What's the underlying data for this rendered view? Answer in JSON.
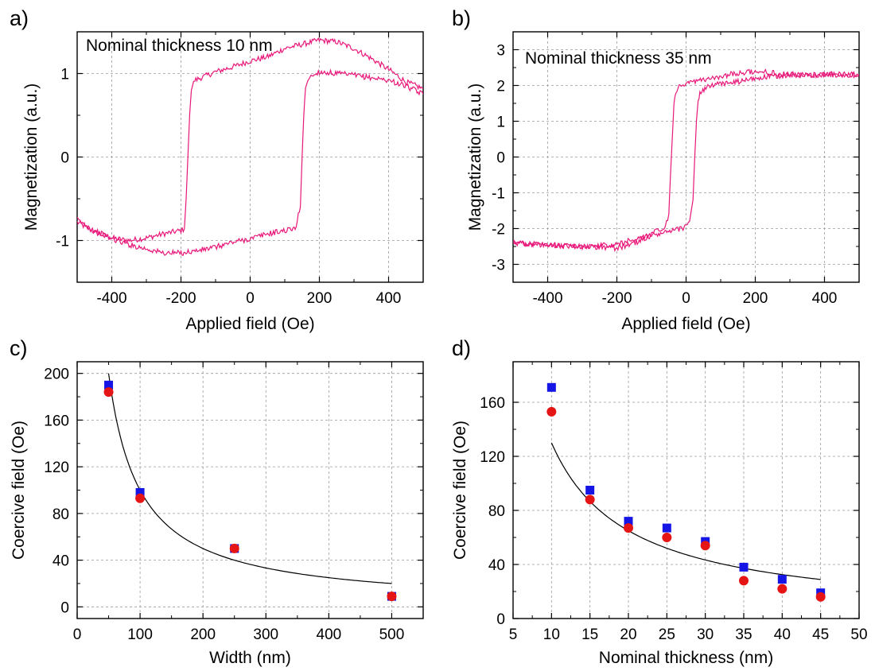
{
  "chart_data": [
    {
      "panel": "a)",
      "type": "line",
      "annotation": "Nominal thickness 10 nm",
      "xlabel": "Applied field (Oe)",
      "ylabel": "Magnetization (a.u.)",
      "xlim": [
        -500,
        500
      ],
      "ylim": [
        -1.5,
        1.5
      ],
      "xticks": [
        -400,
        -200,
        0,
        200,
        400
      ],
      "yticks": [
        -1,
        0,
        1
      ],
      "grid": true,
      "color": "#e8187a",
      "series": [
        {
          "x": [
            -500,
            -450,
            -400,
            -350,
            -300,
            -250,
            -200,
            -190,
            -185,
            -180,
            -175,
            -170,
            -160,
            -100,
            -50,
            0,
            50,
            100,
            150,
            200,
            250,
            300,
            350,
            400,
            450,
            500
          ],
          "y": [
            -0.78,
            -0.9,
            -0.97,
            -1.0,
            -0.97,
            -0.92,
            -0.88,
            -0.86,
            -0.5,
            0.0,
            0.5,
            0.82,
            0.92,
            1.02,
            1.08,
            1.15,
            1.2,
            1.3,
            1.35,
            1.4,
            1.38,
            1.3,
            1.18,
            1.05,
            0.9,
            0.82
          ]
        },
        {
          "x": [
            -500,
            -450,
            -400,
            -350,
            -300,
            -250,
            -200,
            -150,
            -100,
            -50,
            0,
            50,
            100,
            130,
            145,
            150,
            155,
            160,
            170,
            200,
            250,
            300,
            350,
            400,
            450,
            500
          ],
          "y": [
            -0.75,
            -0.88,
            -0.98,
            -1.05,
            -1.1,
            -1.15,
            -1.15,
            -1.12,
            -1.08,
            -1.02,
            -0.98,
            -0.92,
            -0.88,
            -0.86,
            -0.6,
            0.0,
            0.5,
            0.85,
            0.95,
            1.02,
            1.0,
            0.98,
            0.95,
            0.92,
            0.85,
            0.75
          ]
        }
      ]
    },
    {
      "panel": "b)",
      "type": "line",
      "annotation": "Nominal thickness 35 nm",
      "xlabel": "Applied field (Oe)",
      "ylabel": "Magnetization (a.u.)",
      "xlim": [
        -500,
        500
      ],
      "ylim": [
        -3.5,
        3.5
      ],
      "xticks": [
        -400,
        -200,
        0,
        200,
        400
      ],
      "yticks": [
        -3,
        -2,
        -1,
        0,
        1,
        2,
        3
      ],
      "grid": true,
      "color": "#e8187a",
      "series": [
        {
          "x": [
            -500,
            -400,
            -300,
            -200,
            -150,
            -100,
            -60,
            -50,
            -45,
            -40,
            -35,
            -30,
            -20,
            0,
            50,
            100,
            150,
            200,
            250,
            300,
            400,
            500
          ],
          "y": [
            -2.4,
            -2.45,
            -2.5,
            -2.45,
            -2.3,
            -2.15,
            -1.95,
            -1.6,
            -0.5,
            0.5,
            1.5,
            1.85,
            1.95,
            2.05,
            2.15,
            2.25,
            2.35,
            2.4,
            2.35,
            2.3,
            2.3,
            2.3
          ]
        },
        {
          "x": [
            -500,
            -400,
            -300,
            -200,
            -150,
            -100,
            -50,
            0,
            10,
            20,
            25,
            30,
            35,
            40,
            60,
            100,
            150,
            200,
            250,
            300,
            400,
            500
          ],
          "y": [
            -2.4,
            -2.45,
            -2.5,
            -2.55,
            -2.4,
            -2.2,
            -2.1,
            -1.95,
            -1.8,
            -1.2,
            0.0,
            1.0,
            1.6,
            1.8,
            1.95,
            2.05,
            2.1,
            2.2,
            2.25,
            2.3,
            2.3,
            2.3
          ]
        }
      ]
    },
    {
      "panel": "c)",
      "type": "scatter",
      "xlabel": "Width (nm)",
      "ylabel": "Coercive field (Oe)",
      "xlim": [
        0,
        550
      ],
      "ylim": [
        -10,
        210
      ],
      "xticks": [
        0,
        100,
        200,
        300,
        400,
        500
      ],
      "yticks": [
        0,
        40,
        80,
        120,
        160,
        200
      ],
      "grid": true,
      "series": [
        {
          "marker": "square",
          "color": "#1515e6",
          "x": [
            50,
            100,
            250,
            500
          ],
          "y": [
            190,
            98,
            50,
            9
          ]
        },
        {
          "marker": "circle",
          "color": "#e61515",
          "x": [
            50,
            100,
            250,
            500
          ],
          "y": [
            184,
            93,
            50,
            9
          ]
        }
      ],
      "fit": {
        "form": "y = a / x",
        "a": 10000,
        "x_range": [
          50,
          500
        ]
      }
    },
    {
      "panel": "d)",
      "type": "scatter",
      "xlabel": "Nominal thickness (nm)",
      "ylabel": "Coercive field (Oe)",
      "xlim": [
        5,
        50
      ],
      "ylim": [
        0,
        190
      ],
      "xticks": [
        5,
        10,
        15,
        20,
        25,
        30,
        35,
        40,
        45,
        50
      ],
      "yticks": [
        0,
        40,
        80,
        120,
        160
      ],
      "grid": true,
      "series": [
        {
          "marker": "square",
          "color": "#1515e6",
          "x": [
            10,
            15,
            20,
            25,
            30,
            35,
            40,
            45
          ],
          "y": [
            171,
            95,
            72,
            67,
            57,
            38,
            29,
            19
          ]
        },
        {
          "marker": "circle",
          "color": "#e61515",
          "x": [
            10,
            15,
            20,
            25,
            30,
            35,
            40,
            45
          ],
          "y": [
            153,
            88,
            67,
            60,
            54,
            28,
            22,
            16
          ]
        }
      ],
      "fit": {
        "form": "y = a / x",
        "a": 1300,
        "x_range": [
          10,
          45
        ]
      }
    }
  ]
}
